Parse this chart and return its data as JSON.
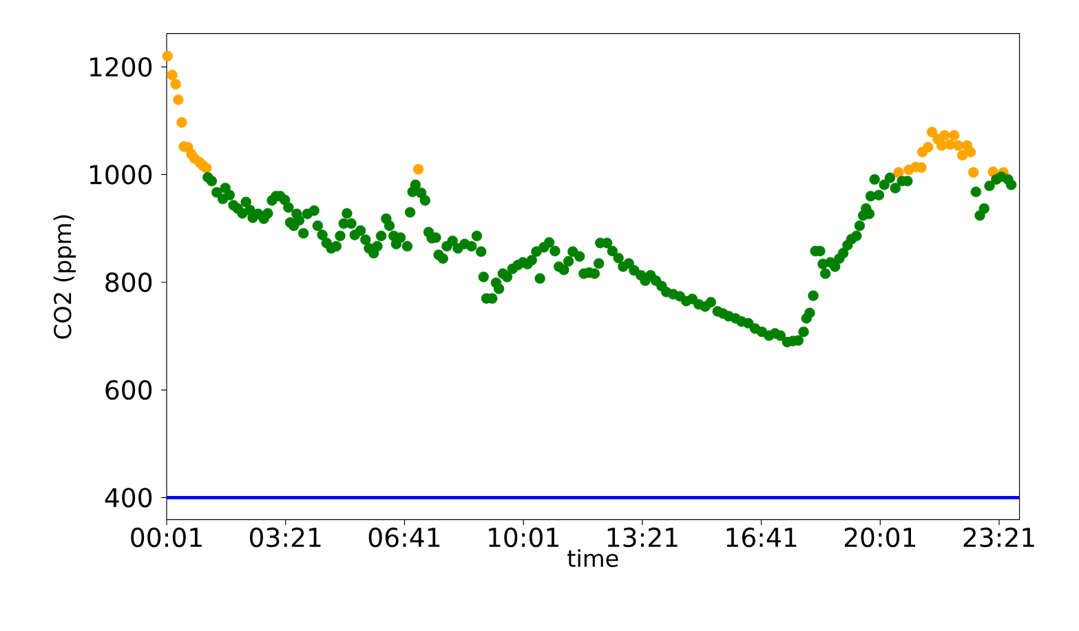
{
  "chart_data": {
    "type": "scatter",
    "xlabel": "time",
    "ylabel": "CO2 (ppm)",
    "grid": false,
    "xlim": [
      0.0167,
      23.92
    ],
    "ylim": [
      359,
      1262
    ],
    "xticks": [
      {
        "value": 0.0167,
        "label": "00:01"
      },
      {
        "value": 3.35,
        "label": "03:21"
      },
      {
        "value": 6.6833,
        "label": "06:41"
      },
      {
        "value": 10.0167,
        "label": "10:01"
      },
      {
        "value": 13.35,
        "label": "13:21"
      },
      {
        "value": 16.6833,
        "label": "16:41"
      },
      {
        "value": 20.0167,
        "label": "20:01"
      },
      {
        "value": 23.35,
        "label": "23:21"
      }
    ],
    "yticks": [
      400,
      600,
      800,
      1000,
      1200
    ],
    "ref_lines": [
      {
        "axis": "y",
        "value": 400,
        "color": "#0000ff"
      }
    ],
    "series": [
      {
        "color": "#ffa500",
        "x": [
          0.04,
          0.17,
          0.27,
          0.34,
          0.44,
          0.5,
          0.61,
          0.71,
          0.8,
          0.94,
          1.03,
          1.13,
          7.07,
          20.53,
          20.82,
          21.01,
          21.17,
          21.2,
          21.36,
          21.47,
          21.63,
          21.74,
          21.82,
          21.97,
          22.09,
          22.2,
          22.32,
          22.45,
          22.55,
          22.63,
          23.18,
          23.47
        ],
        "values": [
          1220,
          1185,
          1168,
          1139,
          1097,
          1052,
          1051,
          1038,
          1030,
          1023,
          1017,
          1012,
          1010,
          1004,
          1009,
          1014,
          1013,
          1042,
          1051,
          1079,
          1066,
          1054,
          1073,
          1056,
          1073,
          1054,
          1036,
          1054,
          1042,
          1004,
          1005,
          1004
        ]
      },
      {
        "color": "#008000",
        "x": [
          1.17,
          1.28,
          1.42,
          1.59,
          1.66,
          1.78,
          1.89,
          2.01,
          2.14,
          2.24,
          2.35,
          2.43,
          2.58,
          2.74,
          2.85,
          2.97,
          3.08,
          3.2,
          3.33,
          3.43,
          3.48,
          3.58,
          3.66,
          3.73,
          3.85,
          3.96,
          4.15,
          4.25,
          4.38,
          4.5,
          4.63,
          4.77,
          4.88,
          4.98,
          5.07,
          5.19,
          5.29,
          5.45,
          5.59,
          5.69,
          5.82,
          5.92,
          6.03,
          6.17,
          6.26,
          6.38,
          6.45,
          6.57,
          6.76,
          6.84,
          6.91,
          6.99,
          7.15,
          7.26,
          7.36,
          7.45,
          7.56,
          7.64,
          7.76,
          7.87,
          8.03,
          8.18,
          8.37,
          8.56,
          8.71,
          8.83,
          8.9,
          8.98,
          9.14,
          9.25,
          9.33,
          9.44,
          9.56,
          9.71,
          9.86,
          10.0,
          10.13,
          10.25,
          10.38,
          10.48,
          10.59,
          10.74,
          10.9,
          11.01,
          11.15,
          11.28,
          11.4,
          11.59,
          11.71,
          11.86,
          12.01,
          12.13,
          12.17,
          12.36,
          12.51,
          12.68,
          12.81,
          12.97,
          13.12,
          13.31,
          13.43,
          13.58,
          13.73,
          13.89,
          14.02,
          14.21,
          14.4,
          14.58,
          14.75,
          14.93,
          15.11,
          15.27,
          15.46,
          15.61,
          15.77,
          15.96,
          16.13,
          16.32,
          16.51,
          16.7,
          16.9,
          17.07,
          17.22,
          17.41,
          17.57,
          17.72,
          17.87,
          17.95,
          18.04,
          18.14,
          18.2,
          18.33,
          18.41,
          18.48,
          18.62,
          18.75,
          18.87,
          18.98,
          19.1,
          19.21,
          19.35,
          19.44,
          19.54,
          19.62,
          19.71,
          19.75,
          19.86,
          19.98,
          20.13,
          20.29,
          20.44,
          20.63,
          20.78,
          22.7,
          22.81,
          22.93,
          23.08,
          23.27,
          23.41,
          23.6,
          23.69
        ],
        "values": [
          995,
          988,
          967,
          955,
          975,
          962,
          943,
          937,
          928,
          949,
          934,
          920,
          927,
          918,
          928,
          952,
          960,
          960,
          953,
          939,
          911,
          905,
          927,
          915,
          891,
          927,
          933,
          905,
          888,
          873,
          863,
          867,
          886,
          909,
          928,
          909,
          888,
          896,
          879,
          863,
          854,
          867,
          886,
          918,
          905,
          886,
          871,
          883,
          867,
          930,
          968,
          981,
          966,
          952,
          893,
          882,
          883,
          851,
          844,
          867,
          877,
          863,
          871,
          867,
          886,
          857,
          810,
          770,
          770,
          799,
          788,
          816,
          810,
          825,
          832,
          837,
          834,
          841,
          857,
          807,
          865,
          874,
          858,
          829,
          823,
          839,
          857,
          848,
          816,
          818,
          816,
          835,
          873,
          873,
          858,
          845,
          829,
          835,
          822,
          813,
          803,
          813,
          803,
          793,
          782,
          778,
          774,
          765,
          769,
          759,
          755,
          763,
          746,
          742,
          737,
          733,
          727,
          724,
          714,
          708,
          701,
          705,
          701,
          689,
          691,
          692,
          708,
          733,
          743,
          775,
          858,
          858,
          834,
          816,
          837,
          829,
          844,
          854,
          869,
          880,
          886,
          905,
          924,
          937,
          927,
          960,
          991,
          962,
          981,
          994,
          975,
          988,
          988,
          968,
          924,
          937,
          979,
          991,
          996,
          991,
          981
        ]
      }
    ]
  }
}
